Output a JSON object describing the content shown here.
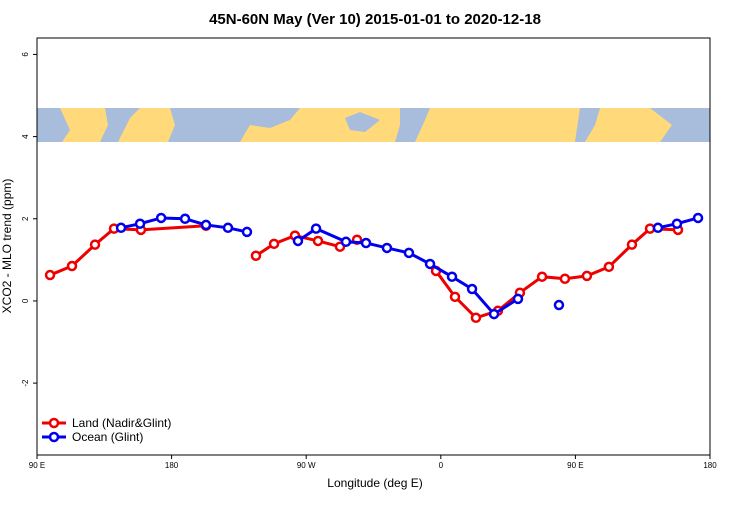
{
  "chart_data": {
    "type": "line",
    "title": "45N-60N May (Ver 10)   2015-01-01 to 2020-12-18",
    "x_label": "Longitude (deg E)",
    "y_label": "XCO2 - MLO trend (ppm)",
    "xlim": [
      90,
      540
    ],
    "ylim": [
      -3.75,
      6.4
    ],
    "xticks": [
      {
        "value": 90,
        "label": "90 E"
      },
      180,
      {
        "value": 270,
        "label": "90 W"
      },
      {
        "value": 360,
        "label": "0"
      },
      {
        "value": 450,
        "label": "90 E"
      },
      {
        "value": 540,
        "label": "180"
      }
    ],
    "yticks": [
      -2,
      0,
      2,
      4,
      6
    ],
    "legend": "bottom-left",
    "series": [
      {
        "name": "Land (Nadir&Glint)",
        "color": "#ee0000",
        "x": [
          98.7,
          113.4,
          128.8,
          141.5,
          159.5,
          203,
          null,
          236.4,
          248.5,
          262.5,
          277.9,
          292.6,
          304,
          null,
          356.8,
          369.5,
          383.5,
          398.2,
          412.9,
          427.7,
          443,
          457.7,
          472.4,
          487.8,
          499.9,
          518.6
        ],
        "values": [
          0.63,
          0.85,
          1.37,
          1.76,
          1.73,
          1.83,
          null,
          1.1,
          1.39,
          1.59,
          1.46,
          1.32,
          1.49,
          null,
          0.73,
          0.1,
          -0.41,
          -0.24,
          0.2,
          0.59,
          0.54,
          0.61,
          0.83,
          1.37,
          1.76,
          1.73
        ]
      },
      {
        "name": "Ocean (Glint)",
        "color": "#0000ee",
        "x": [
          146.2,
          158.9,
          173,
          189,
          203,
          217.7,
          230.4,
          null,
          264.5,
          276.6,
          296.6,
          310,
          324,
          338.7,
          352.8,
          367.5,
          380.9,
          395.6,
          411.6,
          null,
          439,
          null,
          505.2,
          517.9,
          532
        ],
        "values": [
          1.78,
          1.88,
          2.02,
          2,
          1.85,
          1.78,
          1.68,
          null,
          1.46,
          1.76,
          1.44,
          1.41,
          1.29,
          1.17,
          0.9,
          0.59,
          0.29,
          -0.32,
          0.05,
          null,
          -0.1,
          null,
          1.78,
          1.88,
          2.02
        ]
      }
    ]
  }
}
